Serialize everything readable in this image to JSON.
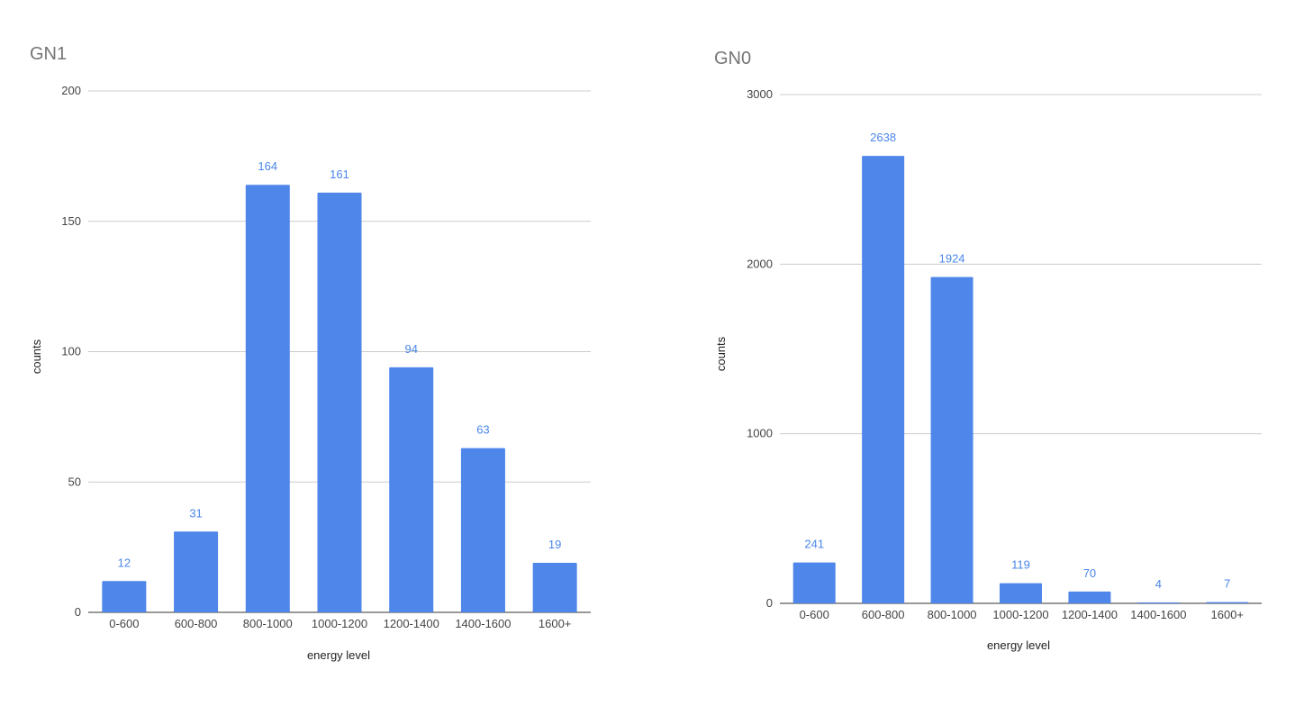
{
  "chart_data": [
    {
      "type": "bar",
      "title": "GN1",
      "xlabel": "energy level",
      "ylabel": "counts",
      "categories": [
        "0-600",
        "600-800",
        "800-1000",
        "1000-1200",
        "1200-1400",
        "1400-1600",
        "1600+"
      ],
      "values": [
        12,
        31,
        164,
        161,
        94,
        63,
        19
      ],
      "ylim": [
        0,
        200
      ],
      "yticks": [
        0,
        50,
        100,
        150,
        200
      ],
      "data_labels": true,
      "grid": true,
      "bar_color": "#4f86ea",
      "label_color": "#4a86e8"
    },
    {
      "type": "bar",
      "title": "GN0",
      "xlabel": "energy level",
      "ylabel": "counts",
      "categories": [
        "0-600",
        "600-800",
        "800-1000",
        "1000-1200",
        "1200-1400",
        "1400-1600",
        "1600+"
      ],
      "values": [
        241,
        2638,
        1924,
        119,
        70,
        4,
        7
      ],
      "ylim": [
        0,
        3000
      ],
      "yticks": [
        0,
        1000,
        2000,
        3000
      ],
      "data_labels": true,
      "grid": true,
      "bar_color": "#4f86ea",
      "label_color": "#4a86e8"
    }
  ]
}
